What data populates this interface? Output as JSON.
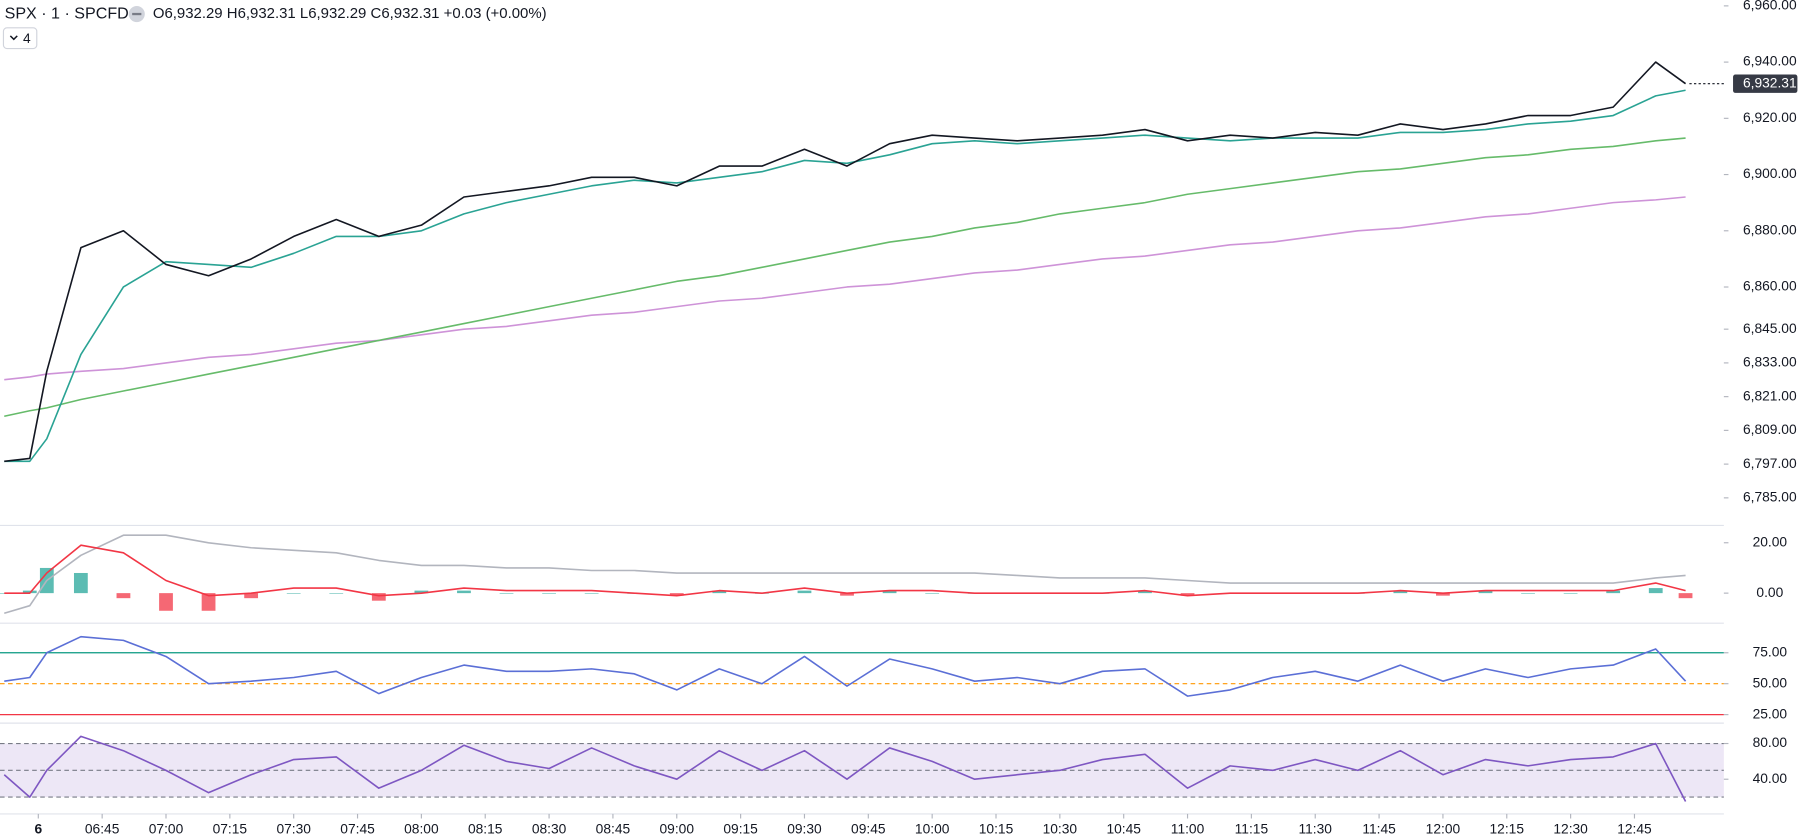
{
  "header": {
    "symbol": "SPX · 1 · SPCFD",
    "ohlc": [
      {
        "letter": "O",
        "value": "6,932.29"
      },
      {
        "letter": "H",
        "value": "6,932.31"
      },
      {
        "letter": "L",
        "value": "6,932.29"
      },
      {
        "letter": "C",
        "value": "6,932.31"
      }
    ],
    "change": "+0.03 (+0.00%)",
    "badge": "4"
  },
  "chart_data": [
    {
      "type": "line",
      "x": [
        "06:22",
        "06:28",
        "06:32",
        "06:40",
        "06:50",
        "07:00",
        "07:10",
        "07:20",
        "07:30",
        "07:40",
        "07:50",
        "08:00",
        "08:10",
        "08:20",
        "08:30",
        "08:40",
        "08:50",
        "09:00",
        "09:10",
        "09:20",
        "09:30",
        "09:40",
        "09:50",
        "10:00",
        "10:10",
        "10:20",
        "10:30",
        "10:40",
        "10:50",
        "11:00",
        "11:10",
        "11:20",
        "11:30",
        "11:40",
        "11:50",
        "12:00",
        "12:10",
        "12:20",
        "12:30",
        "12:40",
        "12:50",
        "12:57"
      ],
      "xlim": [
        "06:21",
        "13:06"
      ],
      "ylim": [
        6776,
        6962
      ],
      "yticks": [
        {
          "value": 6960,
          "label": "6,960.00"
        },
        {
          "value": 6940,
          "label": "6,940.00"
        },
        {
          "value": 6920,
          "label": "6,920.00"
        },
        {
          "value": 6900,
          "label": "6,900.00"
        },
        {
          "value": 6880,
          "label": "6,880.00"
        },
        {
          "value": 6860,
          "label": "6,860.00"
        },
        {
          "value": 6845,
          "label": "6,845.00"
        },
        {
          "value": 6833,
          "label": "6,833.00"
        },
        {
          "value": 6821,
          "label": "6,821.00"
        },
        {
          "value": 6809,
          "label": "6,809.00"
        },
        {
          "value": 6797,
          "label": "6,797.00"
        },
        {
          "value": 6785,
          "label": "6,785.00"
        }
      ],
      "last_price": {
        "value": 6932.31,
        "label": "6,932.31"
      },
      "series": [
        {
          "color": "#ce93d8",
          "values": [
            6827,
            6828,
            6829,
            6830,
            6831,
            6833,
            6835,
            6836,
            6838,
            6840,
            6841,
            6843,
            6845,
            6846,
            6848,
            6850,
            6851,
            6853,
            6855,
            6856,
            6858,
            6860,
            6861,
            6863,
            6865,
            6866,
            6868,
            6870,
            6871,
            6873,
            6875,
            6876,
            6878,
            6880,
            6881,
            6883,
            6885,
            6886,
            6888,
            6890,
            6891,
            6892
          ]
        },
        {
          "color": "#66bb6a",
          "values": [
            6814,
            6816,
            6817,
            6820,
            6823,
            6826,
            6829,
            6832,
            6835,
            6838,
            6841,
            6844,
            6847,
            6850,
            6853,
            6856,
            6859,
            6862,
            6864,
            6867,
            6870,
            6873,
            6876,
            6878,
            6881,
            6883,
            6886,
            6888,
            6890,
            6893,
            6895,
            6897,
            6899,
            6901,
            6902,
            6904,
            6906,
            6907,
            6909,
            6910,
            6912,
            6913
          ]
        },
        {
          "color": "#2aa394",
          "values": [
            6798,
            6798,
            6806,
            6836,
            6860,
            6869,
            6868,
            6867,
            6872,
            6878,
            6878,
            6880,
            6886,
            6890,
            6893,
            6896,
            6898,
            6897,
            6899,
            6901,
            6905,
            6904,
            6907,
            6911,
            6912,
            6911,
            6912,
            6913,
            6914,
            6913,
            6912,
            6913,
            6913,
            6913,
            6915,
            6915,
            6916,
            6918,
            6919,
            6921,
            6928,
            6930
          ]
        },
        {
          "color": "#131722",
          "values": [
            6798,
            6799,
            6830,
            6874,
            6880,
            6868,
            6864,
            6870,
            6878,
            6884,
            6878,
            6882,
            6892,
            6894,
            6896,
            6899,
            6899,
            6896,
            6903,
            6903,
            6909,
            6903,
            6911,
            6914,
            6913,
            6912,
            6913,
            6914,
            6916,
            6912,
            6914,
            6913,
            6915,
            6914,
            6918,
            6916,
            6918,
            6921,
            6921,
            6924,
            6940,
            6932.31
          ]
        }
      ]
    },
    {
      "type": "line",
      "x": [
        "06:22",
        "06:28",
        "06:32",
        "06:40",
        "06:50",
        "07:00",
        "07:10",
        "07:20",
        "07:30",
        "07:40",
        "07:50",
        "08:00",
        "08:10",
        "08:20",
        "08:30",
        "08:40",
        "08:50",
        "09:00",
        "09:10",
        "09:20",
        "09:30",
        "09:40",
        "09:50",
        "10:00",
        "10:10",
        "10:20",
        "10:30",
        "10:40",
        "10:50",
        "11:00",
        "11:10",
        "11:20",
        "11:30",
        "11:40",
        "11:50",
        "12:00",
        "12:10",
        "12:20",
        "12:30",
        "12:40",
        "12:50",
        "12:57"
      ],
      "xlim": [
        "06:21",
        "13:06"
      ],
      "ylim": [
        -11,
        25.5
      ],
      "yticks": [
        {
          "value": 20,
          "label": "20.00"
        },
        {
          "value": 0,
          "label": "0.00"
        }
      ],
      "histogram": {
        "up_color": "#26a69a",
        "down_color": "#f23645",
        "values": [
          0,
          1,
          10,
          8,
          -2,
          -7,
          -7,
          -2,
          0,
          0,
          -3,
          1,
          1,
          0,
          0,
          0,
          0,
          -1,
          1,
          0,
          1,
          -1,
          1,
          0,
          0,
          0,
          0,
          0,
          1,
          -1,
          0,
          0,
          0,
          0,
          1,
          -1,
          1,
          0,
          0,
          1,
          2,
          -2
        ]
      },
      "series": [
        {
          "color": "#b2b5be",
          "values": [
            -8,
            -5,
            5,
            15,
            23,
            23,
            20,
            18,
            17,
            16,
            13,
            11,
            11,
            10,
            10,
            9,
            9,
            8,
            8,
            8,
            8,
            8,
            8,
            8,
            8,
            7,
            6,
            6,
            6,
            5,
            4,
            4,
            4,
            4,
            4,
            4,
            4,
            4,
            4,
            4,
            6,
            7
          ]
        },
        {
          "color": "#f23645",
          "values": [
            0,
            0,
            8,
            19,
            16,
            5,
            -1,
            0,
            2,
            2,
            -1,
            0,
            2,
            1,
            1,
            1,
            0,
            -1,
            1,
            0,
            2,
            0,
            1,
            1,
            0,
            0,
            0,
            0,
            1,
            -1,
            0,
            0,
            0,
            0,
            1,
            0,
            1,
            1,
            1,
            1,
            4,
            1
          ]
        }
      ]
    },
    {
      "type": "line",
      "x": [
        "06:22",
        "06:28",
        "06:32",
        "06:40",
        "06:50",
        "07:00",
        "07:10",
        "07:20",
        "07:30",
        "07:40",
        "07:50",
        "08:00",
        "08:10",
        "08:20",
        "08:30",
        "08:40",
        "08:50",
        "09:00",
        "09:10",
        "09:20",
        "09:30",
        "09:40",
        "09:50",
        "10:00",
        "10:10",
        "10:20",
        "10:30",
        "10:40",
        "10:50",
        "11:00",
        "11:10",
        "11:20",
        "11:30",
        "11:40",
        "11:50",
        "12:00",
        "12:10",
        "12:20",
        "12:30",
        "12:40",
        "12:50",
        "12:57"
      ],
      "xlim": [
        "06:21",
        "13:06"
      ],
      "ylim": [
        20,
        98
      ],
      "yticks": [
        {
          "value": 75,
          "label": "75.00"
        },
        {
          "value": 50,
          "label": "50.00"
        },
        {
          "value": 25,
          "label": "25.00"
        }
      ],
      "hlines": [
        {
          "value": 75,
          "color": "#089981"
        },
        {
          "value": 50,
          "color": "#ff9800",
          "dashed": true
        },
        {
          "value": 25,
          "color": "#f23645"
        }
      ],
      "series": [
        {
          "color": "#5b6fd6",
          "values": [
            52,
            55,
            75,
            88,
            85,
            72,
            50,
            52,
            55,
            60,
            42,
            55,
            65,
            60,
            60,
            62,
            58,
            45,
            62,
            50,
            72,
            48,
            70,
            62,
            52,
            55,
            50,
            60,
            62,
            40,
            45,
            55,
            60,
            52,
            65,
            52,
            62,
            55,
            62,
            65,
            78,
            52
          ]
        }
      ]
    },
    {
      "type": "line",
      "x": [
        "06:22",
        "06:28",
        "06:32",
        "06:40",
        "06:50",
        "07:00",
        "07:10",
        "07:20",
        "07:30",
        "07:40",
        "07:50",
        "08:00",
        "08:10",
        "08:20",
        "08:30",
        "08:40",
        "08:50",
        "09:00",
        "09:10",
        "09:20",
        "09:30",
        "09:40",
        "09:50",
        "10:00",
        "10:10",
        "10:20",
        "10:30",
        "10:40",
        "10:50",
        "11:00",
        "11:10",
        "11:20",
        "11:30",
        "11:40",
        "11:50",
        "12:00",
        "12:10",
        "12:20",
        "12:30",
        "12:40",
        "12:50",
        "12:57"
      ],
      "xlim": [
        "06:21",
        "13:06"
      ],
      "ylim": [
        5,
        99
      ],
      "yticks": [
        {
          "value": 80,
          "label": "80.00"
        },
        {
          "value": 40,
          "label": "40.00"
        }
      ],
      "band": {
        "from": 20,
        "to": 80,
        "color": "#ede7f6"
      },
      "hlines": [
        {
          "value": 80,
          "color": "#787b86",
          "dashed": true
        },
        {
          "value": 50,
          "color": "#787b86",
          "dashed": true
        },
        {
          "value": 20,
          "color": "#787b86",
          "dashed": true
        }
      ],
      "xticks": [
        {
          "value": "06:30",
          "label": "6"
        },
        "06:45",
        "07:00",
        "07:15",
        "07:30",
        "07:45",
        "08:00",
        "08:15",
        "08:30",
        "08:45",
        "09:00",
        "09:15",
        "09:30",
        "09:45",
        "10:00",
        "10:15",
        "10:30",
        "10:45",
        "11:00",
        "11:15",
        "11:30",
        "11:45",
        "12:00",
        "12:15",
        "12:30",
        "12:45"
      ],
      "series": [
        {
          "color": "#7e57c2",
          "values": [
            45,
            20,
            50,
            88,
            72,
            50,
            25,
            45,
            62,
            65,
            30,
            50,
            78,
            60,
            52,
            75,
            55,
            40,
            72,
            50,
            72,
            40,
            75,
            60,
            40,
            45,
            50,
            62,
            68,
            30,
            55,
            50,
            62,
            50,
            72,
            45,
            62,
            55,
            62,
            65,
            80,
            15
          ]
        }
      ]
    }
  ]
}
